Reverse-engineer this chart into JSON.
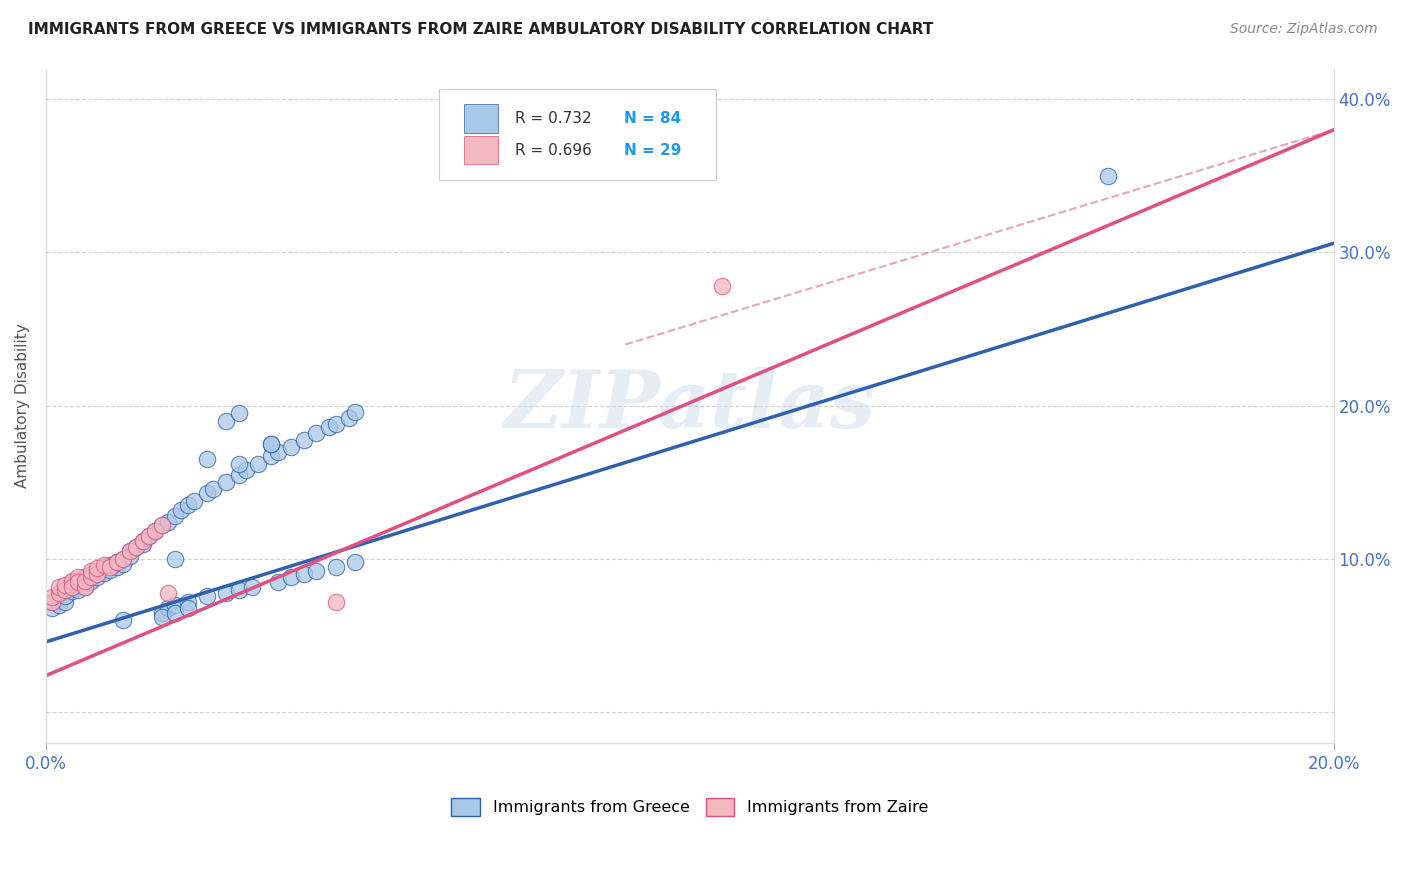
{
  "title": "IMMIGRANTS FROM GREECE VS IMMIGRANTS FROM ZAIRE AMBULATORY DISABILITY CORRELATION CHART",
  "source": "Source: ZipAtlas.com",
  "ylabel": "Ambulatory Disability",
  "legend_label1": "Immigrants from Greece",
  "legend_label2": "Immigrants from Zaire",
  "R1": 0.732,
  "N1": 84,
  "R2": 0.696,
  "N2": 29,
  "color_greece": "#a8c8e8",
  "color_zaire": "#f4b8c0",
  "line_color_greece": "#3060b0",
  "line_color_zaire": "#e05080",
  "watermark": "ZIPatlas",
  "xlim": [
    0.0,
    0.2
  ],
  "ylim": [
    -0.02,
    0.42
  ],
  "ytick_vals": [
    0.0,
    0.1,
    0.2,
    0.3,
    0.4
  ],
  "ytick_labels": [
    "",
    "10.0%",
    "20.0%",
    "30.0%",
    "40.0%"
  ],
  "xtick_vals": [
    0.0,
    0.2
  ],
  "xtick_labels": [
    "0.0%",
    "20.0%"
  ],
  "greece_line": [
    0.0,
    0.046,
    0.2,
    0.306
  ],
  "zaire_line": [
    0.0,
    0.024,
    0.2,
    0.38
  ],
  "dashed_line": [
    0.09,
    0.24,
    0.2,
    0.38
  ],
  "greece_scatter_x": [
    0.001,
    0.001,
    0.002,
    0.002,
    0.002,
    0.003,
    0.003,
    0.003,
    0.004,
    0.004,
    0.004,
    0.005,
    0.005,
    0.005,
    0.006,
    0.006,
    0.006,
    0.007,
    0.007,
    0.007,
    0.008,
    0.008,
    0.009,
    0.009,
    0.01,
    0.01,
    0.011,
    0.011,
    0.012,
    0.012,
    0.013,
    0.013,
    0.014,
    0.015,
    0.015,
    0.016,
    0.017,
    0.018,
    0.019,
    0.02,
    0.021,
    0.022,
    0.023,
    0.025,
    0.026,
    0.028,
    0.03,
    0.031,
    0.033,
    0.035,
    0.036,
    0.038,
    0.04,
    0.042,
    0.044,
    0.045,
    0.047,
    0.048,
    0.018,
    0.019,
    0.02,
    0.022,
    0.025,
    0.028,
    0.03,
    0.032,
    0.036,
    0.038,
    0.04,
    0.042,
    0.045,
    0.048,
    0.02,
    0.025,
    0.03,
    0.035,
    0.028,
    0.03,
    0.035,
    0.165,
    0.012,
    0.018,
    0.02,
    0.022
  ],
  "greece_scatter_y": [
    0.068,
    0.072,
    0.075,
    0.07,
    0.078,
    0.072,
    0.08,
    0.076,
    0.082,
    0.079,
    0.085,
    0.083,
    0.08,
    0.086,
    0.084,
    0.088,
    0.082,
    0.086,
    0.09,
    0.088,
    0.092,
    0.088,
    0.095,
    0.091,
    0.096,
    0.093,
    0.098,
    0.095,
    0.1,
    0.097,
    0.105,
    0.102,
    0.108,
    0.112,
    0.11,
    0.115,
    0.118,
    0.122,
    0.124,
    0.128,
    0.132,
    0.135,
    0.138,
    0.143,
    0.146,
    0.15,
    0.155,
    0.158,
    0.162,
    0.167,
    0.17,
    0.173,
    0.178,
    0.182,
    0.186,
    0.188,
    0.192,
    0.196,
    0.065,
    0.068,
    0.07,
    0.072,
    0.076,
    0.078,
    0.08,
    0.082,
    0.085,
    0.088,
    0.09,
    0.092,
    0.095,
    0.098,
    0.1,
    0.165,
    0.162,
    0.175,
    0.19,
    0.195,
    0.175,
    0.35,
    0.06,
    0.062,
    0.065,
    0.068
  ],
  "zaire_scatter_x": [
    0.001,
    0.001,
    0.002,
    0.002,
    0.003,
    0.003,
    0.004,
    0.004,
    0.005,
    0.005,
    0.006,
    0.006,
    0.007,
    0.007,
    0.008,
    0.008,
    0.009,
    0.01,
    0.011,
    0.012,
    0.013,
    0.014,
    0.015,
    0.016,
    0.017,
    0.018,
    0.019,
    0.105,
    0.045
  ],
  "zaire_scatter_y": [
    0.072,
    0.075,
    0.078,
    0.082,
    0.08,
    0.083,
    0.086,
    0.082,
    0.088,
    0.085,
    0.082,
    0.086,
    0.088,
    0.092,
    0.09,
    0.094,
    0.096,
    0.095,
    0.098,
    0.1,
    0.105,
    0.108,
    0.112,
    0.115,
    0.118,
    0.122,
    0.078,
    0.278,
    0.072
  ]
}
